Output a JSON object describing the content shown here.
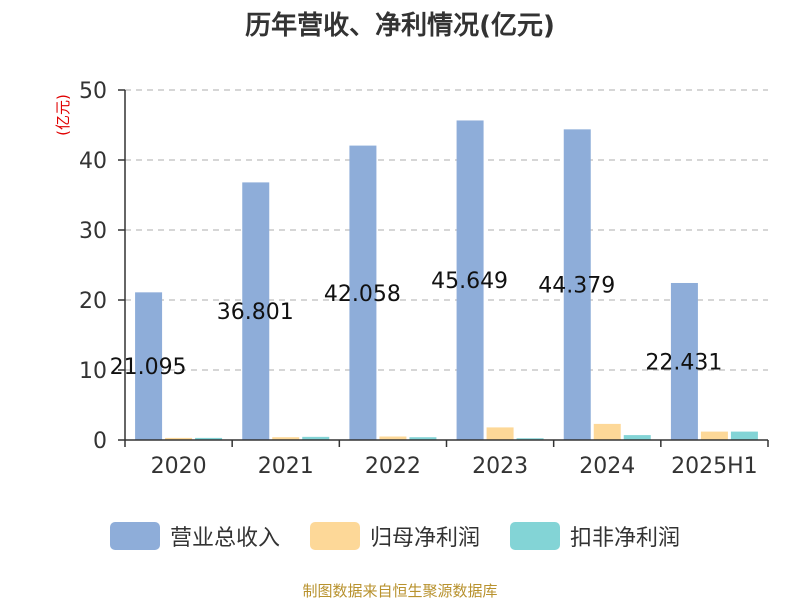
{
  "title": "历年营收、净利情况(亿元)",
  "unit_label": "(亿元)",
  "source": "制图数据来自恒生聚源数据库",
  "colors": {
    "revenue": "#8eadd9",
    "parent_net": "#fdd898",
    "deducted_net": "#83d4d6",
    "unit": "#e00000",
    "source": "#b8922e",
    "grid": "#c8c8c8",
    "axis": "#333333"
  },
  "chart_data": {
    "type": "bar",
    "title": "历年营收、净利情况(亿元)",
    "ylabel": "(亿元)",
    "xlabel": "",
    "categories": [
      "2020",
      "2021",
      "2022",
      "2023",
      "2024",
      "2025H1"
    ],
    "ylim": [
      0,
      50
    ],
    "yticks": [
      0,
      10,
      20,
      30,
      40,
      50
    ],
    "grid": true,
    "legend_position": "bottom",
    "series": [
      {
        "name": "营业总收入",
        "key": "revenue",
        "values": [
          21.095,
          36.801,
          42.058,
          45.649,
          44.379,
          22.431
        ],
        "labels": [
          "21.095",
          "36.801",
          "42.058",
          "45.649",
          "44.379",
          "22.431"
        ]
      },
      {
        "name": "归母净利润",
        "key": "parent_net",
        "values": [
          0.3,
          0.4,
          0.5,
          1.8,
          2.3,
          1.2
        ]
      },
      {
        "name": "扣非净利润",
        "key": "deducted_net",
        "values": [
          0.3,
          0.45,
          0.4,
          0.25,
          0.7,
          1.2
        ]
      }
    ]
  }
}
